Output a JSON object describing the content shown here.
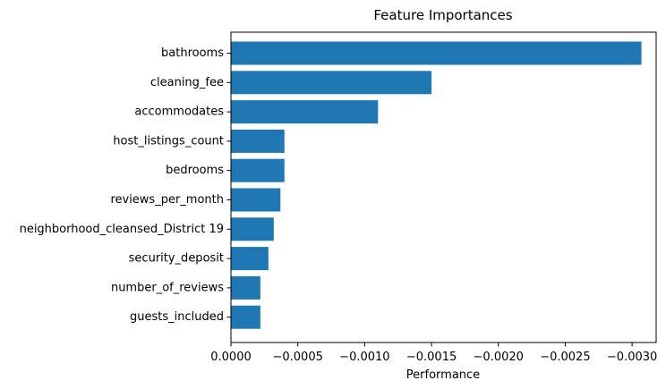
{
  "chart_data": {
    "type": "bar",
    "orientation": "horizontal",
    "title": "Feature Importances",
    "xlabel": "Performance",
    "ylabel": "",
    "categories": [
      "bathrooms",
      "cleaning_fee",
      "accommodates",
      "host_listings_count",
      "bedrooms",
      "reviews_per_month",
      "neighborhood_cleansed_District 19",
      "security_deposit",
      "number_of_reviews",
      "guests_included"
    ],
    "values": [
      -0.00307,
      -0.0015,
      -0.0011,
      -0.0004,
      -0.0004,
      -0.00037,
      -0.00032,
      -0.00028,
      -0.00022,
      -0.00022
    ],
    "xlim": [
      0.0,
      -0.00318
    ],
    "x_ticks": [
      0.0,
      -0.0005,
      -0.001,
      -0.0015,
      -0.002,
      -0.0025,
      -0.003
    ],
    "x_tick_labels": [
      "0.0000",
      "−0.0005",
      "−0.0010",
      "−0.0015",
      "−0.0020",
      "−0.0025",
      "−0.0030"
    ],
    "bar_color": "#1f77b4",
    "grid": false,
    "legend": "none"
  }
}
